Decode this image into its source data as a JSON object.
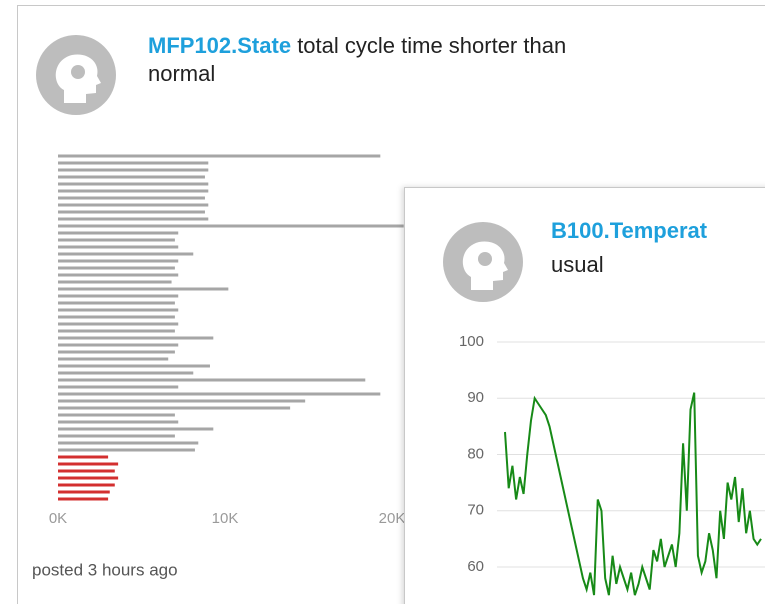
{
  "cards": [
    {
      "source": "MFP102.State",
      "message_line1": "total cycle time shorter than",
      "message_line2": "normal",
      "posted": "posted 3 hours ago"
    },
    {
      "source": "B100.Temperat",
      "message_line2": "usual"
    }
  ],
  "chart_data": [
    {
      "type": "hbar",
      "values": [
        19300,
        9000,
        9000,
        8800,
        9000,
        9000,
        8800,
        9000,
        8800,
        9000,
        20700,
        7200,
        7000,
        7200,
        8100,
        7200,
        7000,
        7200,
        6800,
        10200,
        7200,
        7000,
        7200,
        7000,
        7200,
        7000,
        9300,
        7200,
        7000,
        6600,
        9100,
        8100,
        18400,
        7200,
        19300,
        14800,
        13900,
        7000,
        7200,
        9300,
        7000,
        8400,
        8200,
        3000,
        3600,
        3400,
        3600,
        3400,
        3100,
        3000
      ],
      "colors": [
        "#a6a6a6",
        "#a6a6a6",
        "#a6a6a6",
        "#a6a6a6",
        "#a6a6a6",
        "#a6a6a6",
        "#a6a6a6",
        "#a6a6a6",
        "#a6a6a6",
        "#a6a6a6",
        "#a6a6a6",
        "#a6a6a6",
        "#a6a6a6",
        "#a6a6a6",
        "#a6a6a6",
        "#a6a6a6",
        "#a6a6a6",
        "#a6a6a6",
        "#a6a6a6",
        "#a6a6a6",
        "#a6a6a6",
        "#a6a6a6",
        "#a6a6a6",
        "#a6a6a6",
        "#a6a6a6",
        "#a6a6a6",
        "#a6a6a6",
        "#a6a6a6",
        "#a6a6a6",
        "#a6a6a6",
        "#a6a6a6",
        "#a6a6a6",
        "#a6a6a6",
        "#a6a6a6",
        "#a6a6a6",
        "#a6a6a6",
        "#a6a6a6",
        "#a6a6a6",
        "#a6a6a6",
        "#a6a6a6",
        "#a6a6a6",
        "#a6a6a6",
        "#a6a6a6",
        "#d32f2f",
        "#d32f2f",
        "#d32f2f",
        "#d32f2f",
        "#d32f2f",
        "#d32f2f",
        "#d32f2f"
      ],
      "xlim": [
        0,
        20000
      ],
      "xticks": [
        {
          "value": 0,
          "label": "0K"
        },
        {
          "value": 10000,
          "label": "10K"
        },
        {
          "value": 20000,
          "label": "20K"
        }
      ]
    },
    {
      "type": "line",
      "color": "#178a17",
      "values": [
        84,
        74,
        78,
        72,
        76,
        73,
        80,
        86,
        90,
        89,
        88,
        87,
        85,
        82,
        79,
        76,
        73,
        70,
        67,
        64,
        61,
        58,
        56,
        59,
        55,
        72,
        70,
        58,
        55,
        62,
        57,
        60,
        58,
        56,
        59,
        55,
        57,
        60,
        58,
        56,
        63,
        61,
        65,
        60,
        62,
        64,
        60,
        66,
        82,
        70,
        88,
        91,
        62,
        59,
        61,
        66,
        63,
        58,
        70,
        65,
        75,
        72,
        76,
        68,
        74,
        66,
        70,
        65,
        64,
        65
      ],
      "ylim": [
        60,
        100
      ],
      "yticks": [
        60,
        70,
        80,
        90,
        100
      ],
      "grid": true
    }
  ]
}
